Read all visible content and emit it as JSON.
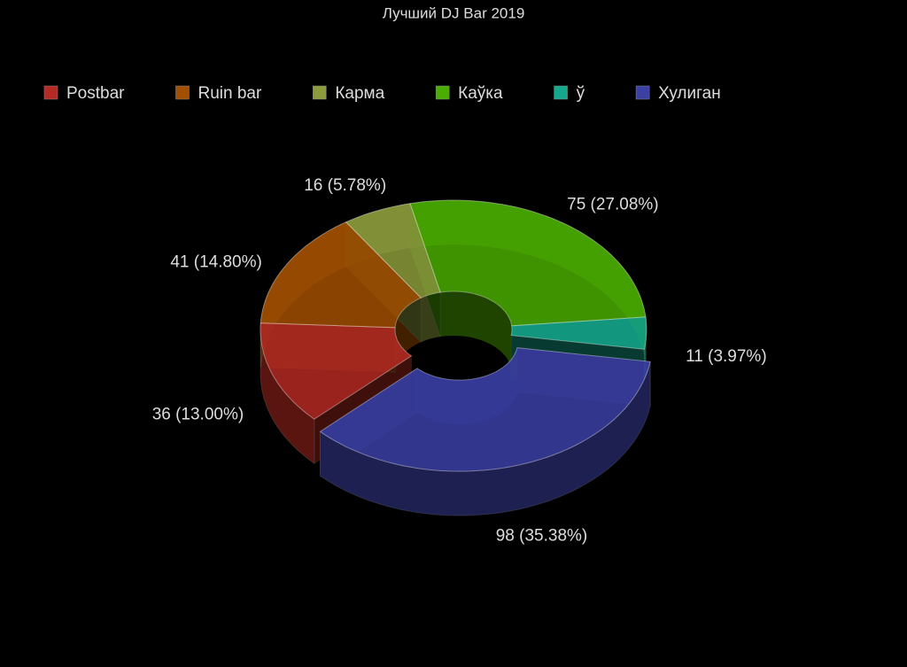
{
  "chart_data": {
    "type": "donut3d",
    "title": "Лучший DJ Bar 2019",
    "categories": [
      "Postbar",
      "Ruin bar",
      "Карма",
      "Каўка",
      "ў",
      "Хулиган"
    ],
    "values": [
      36,
      41,
      16,
      75,
      11,
      98
    ],
    "value_labels": [
      "36 (13.00%)",
      "41 (14.80%)",
      "16 (5.78%)",
      "75 (27.08%)",
      "11 (3.97%)",
      "98 (35.38%)"
    ],
    "colors": [
      "#b52a22",
      "#a24f00",
      "#8c9c3c",
      "#4aab00",
      "#14a88c",
      "#3b40a4"
    ],
    "legend": "top"
  }
}
